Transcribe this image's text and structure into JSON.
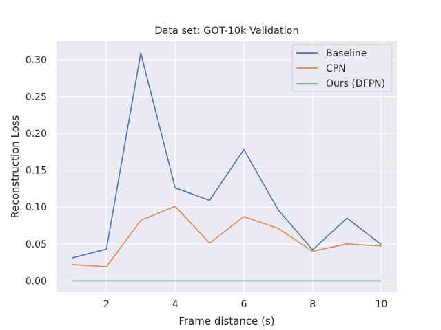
{
  "chart_data": {
    "type": "line",
    "title": "Data set: GOT-10k Validation",
    "xlabel": "Frame distance (s)",
    "ylabel": "Reconstruction Loss",
    "x": [
      1,
      2,
      3,
      4,
      5,
      6,
      7,
      8,
      9,
      10
    ],
    "xlim": [
      0.55,
      10.45
    ],
    "ylim": [
      -0.0155,
      0.325
    ],
    "xticks": [
      2,
      4,
      6,
      8,
      10
    ],
    "xtick_labels": [
      "2",
      "4",
      "6",
      "8",
      "10"
    ],
    "yticks": [
      0.0,
      0.05,
      0.1,
      0.15,
      0.2,
      0.25,
      0.3
    ],
    "ytick_labels": [
      "0.00",
      "0.05",
      "0.10",
      "0.15",
      "0.20",
      "0.25",
      "0.30"
    ],
    "grid": true,
    "legend_position": "top-right",
    "series": [
      {
        "name": "Baseline",
        "color": "#4c72b0",
        "values": [
          0.031,
          0.043,
          0.309,
          0.126,
          0.109,
          0.178,
          0.096,
          0.042,
          0.085,
          0.049
        ]
      },
      {
        "name": "CPN",
        "color": "#dd8452",
        "values": [
          0.022,
          0.019,
          0.082,
          0.101,
          0.051,
          0.087,
          0.071,
          0.04,
          0.05,
          0.047
        ]
      },
      {
        "name": "Ours (DFPN)",
        "color": "#55a868",
        "values": [
          0.0,
          0.0,
          0.0,
          0.0,
          0.0,
          0.0,
          0.0,
          0.0,
          0.0,
          0.0
        ]
      }
    ],
    "plot_background": "#eaeaf2",
    "grid_color": "#ffffff"
  }
}
